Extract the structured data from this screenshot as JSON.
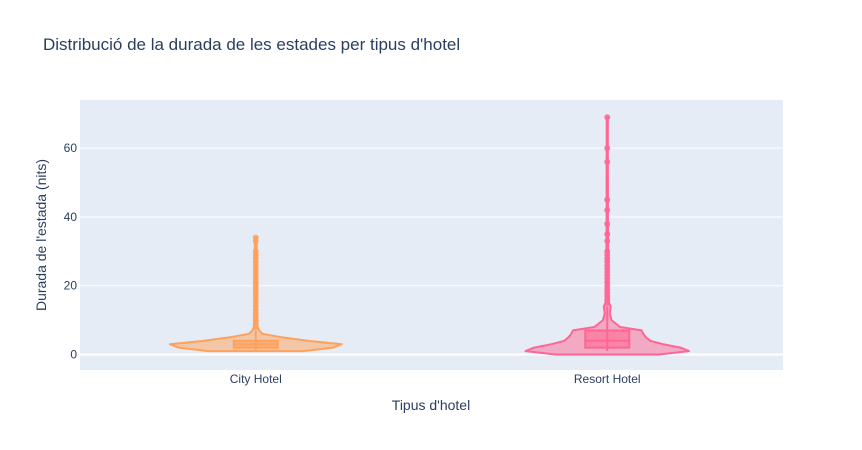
{
  "chart_data": {
    "type": "violin",
    "title": "Distribució de la durada de les estades per tipus d'hotel",
    "xlabel": "Tipus d'hotel",
    "ylabel": "Durada de l'estada (nits)",
    "categories": [
      "City Hotel",
      "Resort Hotel"
    ],
    "y_ticks": [
      0,
      20,
      40,
      60
    ],
    "ylim": [
      -4.5,
      74
    ],
    "grid": true,
    "legend": "none",
    "colors": [
      "#FFA15A",
      "#FF6692"
    ],
    "series": [
      {
        "category": "City Hotel",
        "color": "#FFA15A",
        "min": 1,
        "q1": 2,
        "median": 3,
        "q3": 4,
        "max": 7,
        "density": [
          [
            1,
            0.55
          ],
          [
            2,
            0.9
          ],
          [
            3,
            1.0
          ],
          [
            4,
            0.6
          ],
          [
            5,
            0.3
          ],
          [
            6,
            0.08
          ],
          [
            7,
            0.04
          ],
          [
            8,
            0.02
          ],
          [
            10,
            0.015
          ],
          [
            15,
            0.012
          ],
          [
            20,
            0.012
          ],
          [
            25,
            0.012
          ],
          [
            30,
            0.012
          ],
          [
            34,
            0.01
          ]
        ],
        "outliers": [
          8,
          9,
          10,
          11,
          12,
          13,
          14,
          15,
          16,
          17,
          18,
          19,
          20,
          21,
          22,
          23,
          24,
          25,
          26,
          27,
          28,
          29,
          30,
          33,
          34
        ]
      },
      {
        "category": "Resort Hotel",
        "color": "#FF6692",
        "min": 1,
        "q1": 2,
        "median": 4,
        "q3": 7,
        "max": 14,
        "density": [
          [
            0,
            0.6
          ],
          [
            1,
            0.95
          ],
          [
            2,
            0.85
          ],
          [
            3,
            0.65
          ],
          [
            4,
            0.5
          ],
          [
            5,
            0.45
          ],
          [
            6,
            0.42
          ],
          [
            7,
            0.4
          ],
          [
            8,
            0.15
          ],
          [
            10,
            0.05
          ],
          [
            12,
            0.03
          ],
          [
            14,
            0.04
          ],
          [
            15,
            0.02
          ],
          [
            20,
            0.012
          ],
          [
            30,
            0.01
          ],
          [
            40,
            0.008
          ],
          [
            50,
            0.007
          ],
          [
            60,
            0.006
          ],
          [
            69,
            0.006
          ]
        ],
        "outliers": [
          15,
          16,
          17,
          18,
          19,
          20,
          21,
          22,
          23,
          24,
          25,
          26,
          27,
          28,
          29,
          30,
          33,
          35,
          38,
          42,
          45,
          56,
          60,
          69
        ]
      }
    ]
  }
}
